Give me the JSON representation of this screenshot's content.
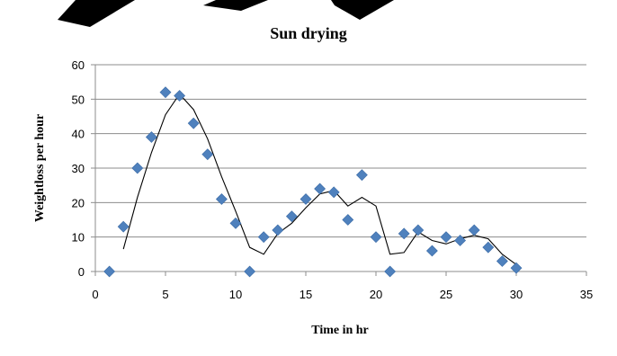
{
  "chart_data": {
    "type": "scatter",
    "title": "Sun drying",
    "xlabel": "Time in hr",
    "ylabel": "Weightloss per hour",
    "xlim": [
      0,
      35
    ],
    "ylim": [
      0,
      60
    ],
    "xticks": [
      0,
      5,
      10,
      15,
      20,
      25,
      30,
      35
    ],
    "yticks": [
      0,
      10,
      20,
      30,
      40,
      50,
      60
    ],
    "grid": {
      "horizontal": true,
      "vertical": false
    },
    "legend": "none",
    "series": [
      {
        "marker": "diamond",
        "color": "#4f81bd",
        "x": [
          1,
          2,
          3,
          4,
          5,
          6,
          7,
          8,
          9,
          10,
          11,
          12,
          13,
          14,
          15,
          16,
          17,
          18,
          19,
          20,
          21,
          22,
          23,
          24,
          25,
          26,
          27,
          28,
          29,
          30
        ],
        "y": [
          0,
          13,
          30,
          39,
          52,
          51,
          43,
          34,
          21,
          14,
          0,
          10,
          12,
          16,
          21,
          24,
          23,
          15,
          28,
          10,
          0,
          11,
          12,
          6,
          10,
          9,
          12,
          7,
          3,
          1
        ]
      }
    ],
    "trendline": {
      "type": "moving average (2 period)",
      "color": "#000000",
      "x": [
        2,
        3,
        4,
        5,
        6,
        7,
        8,
        9,
        10,
        11,
        12,
        13,
        14,
        15,
        16,
        17,
        18,
        19,
        20,
        21,
        22,
        23,
        24,
        25,
        26,
        27,
        28,
        29,
        30
      ],
      "y": [
        6.5,
        21.5,
        34.5,
        45.5,
        51.5,
        47,
        38.5,
        27.5,
        17.5,
        7,
        5,
        11,
        14,
        18.5,
        22.5,
        23.5,
        19,
        21.5,
        19,
        5,
        5.5,
        11.5,
        9,
        8,
        9.5,
        10.5,
        9.5,
        5,
        2
      ]
    }
  },
  "colors": {
    "marker": "#4f81bd",
    "gridline": "#8c8c8c",
    "text": "#000000",
    "background": "#ffffff"
  }
}
